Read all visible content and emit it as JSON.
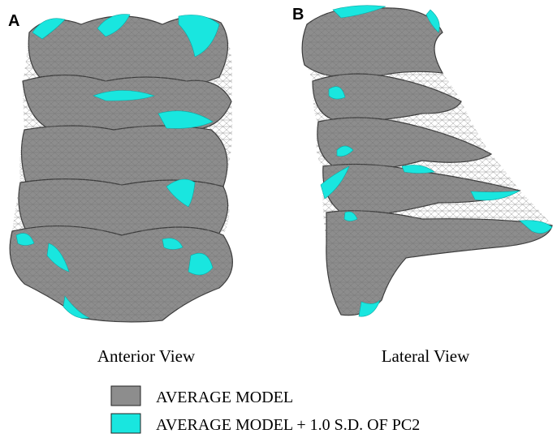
{
  "panels": [
    {
      "label": "A",
      "caption": "Anterior View"
    },
    {
      "label": "B",
      "caption": "Lateral View"
    }
  ],
  "legend": [
    {
      "label": "AVERAGE MODEL"
    },
    {
      "label": "AVERAGE MODEL + 1.0 S.D. OF PC2"
    }
  ]
}
